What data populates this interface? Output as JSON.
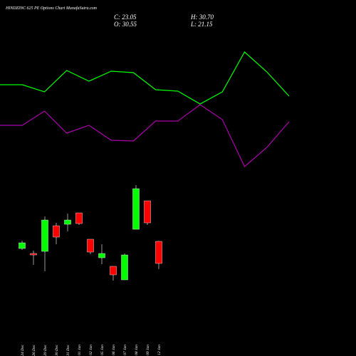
{
  "header": {
    "title": "HINDZINC 625 PE Options Chart MunafaSutra.com",
    "close": "C: 23.05",
    "high": "H: 30.70",
    "open": "O: 30.55",
    "low": "L: 21.15"
  },
  "chart_data": [
    {
      "type": "candlestick",
      "categories": [
        "24 Dec",
        "26 Dec",
        "29 Dec",
        "30 Dec",
        "31 Dec",
        "01 Jan",
        "02 Jan",
        "05 Jan",
        "06 Jan",
        "07 Jan",
        "08 Jan",
        "09 Jan",
        "12 Jan"
      ],
      "open": [
        28.13,
        26.44,
        27.16,
        35.87,
        36.36,
        40.23,
        31.28,
        24.98,
        22.08,
        17.48,
        34.66,
        44.34,
        30.55
      ],
      "high": [
        30.79,
        27.4,
        39.02,
        36.84,
        39.99,
        40.23,
        31.28,
        29.58,
        22.08,
        26.44,
        49.67,
        44.34,
        30.7
      ],
      "low": [
        27.65,
        22.56,
        20.39,
        29.58,
        33.94,
        36.12,
        26.19,
        22.81,
        17.24,
        17.48,
        34.66,
        36.12,
        21.15
      ],
      "close": [
        30.07,
        25.95,
        37.81,
        32.0,
        37.81,
        36.6,
        26.92,
        26.44,
        19.18,
        25.95,
        48.46,
        36.84,
        23.05
      ],
      "up_color": "#00ff00",
      "down_color": "#ff0000",
      "ylim": [
        15.79,
        52.09
      ]
    },
    {
      "type": "line",
      "series": [
        {
          "color": "#00ff00",
          "values": [
            131,
            131,
            121,
            151,
            136,
            150,
            148,
            124,
            122,
            104,
            121,
            177,
            149,
            115
          ]
        },
        {
          "color": "#aa00aa",
          "values": [
            74,
            74,
            94,
            63,
            74,
            53,
            52,
            80,
            80,
            103,
            82,
            16,
            43,
            79
          ]
        }
      ],
      "ylim": [
        0,
        250
      ]
    }
  ]
}
